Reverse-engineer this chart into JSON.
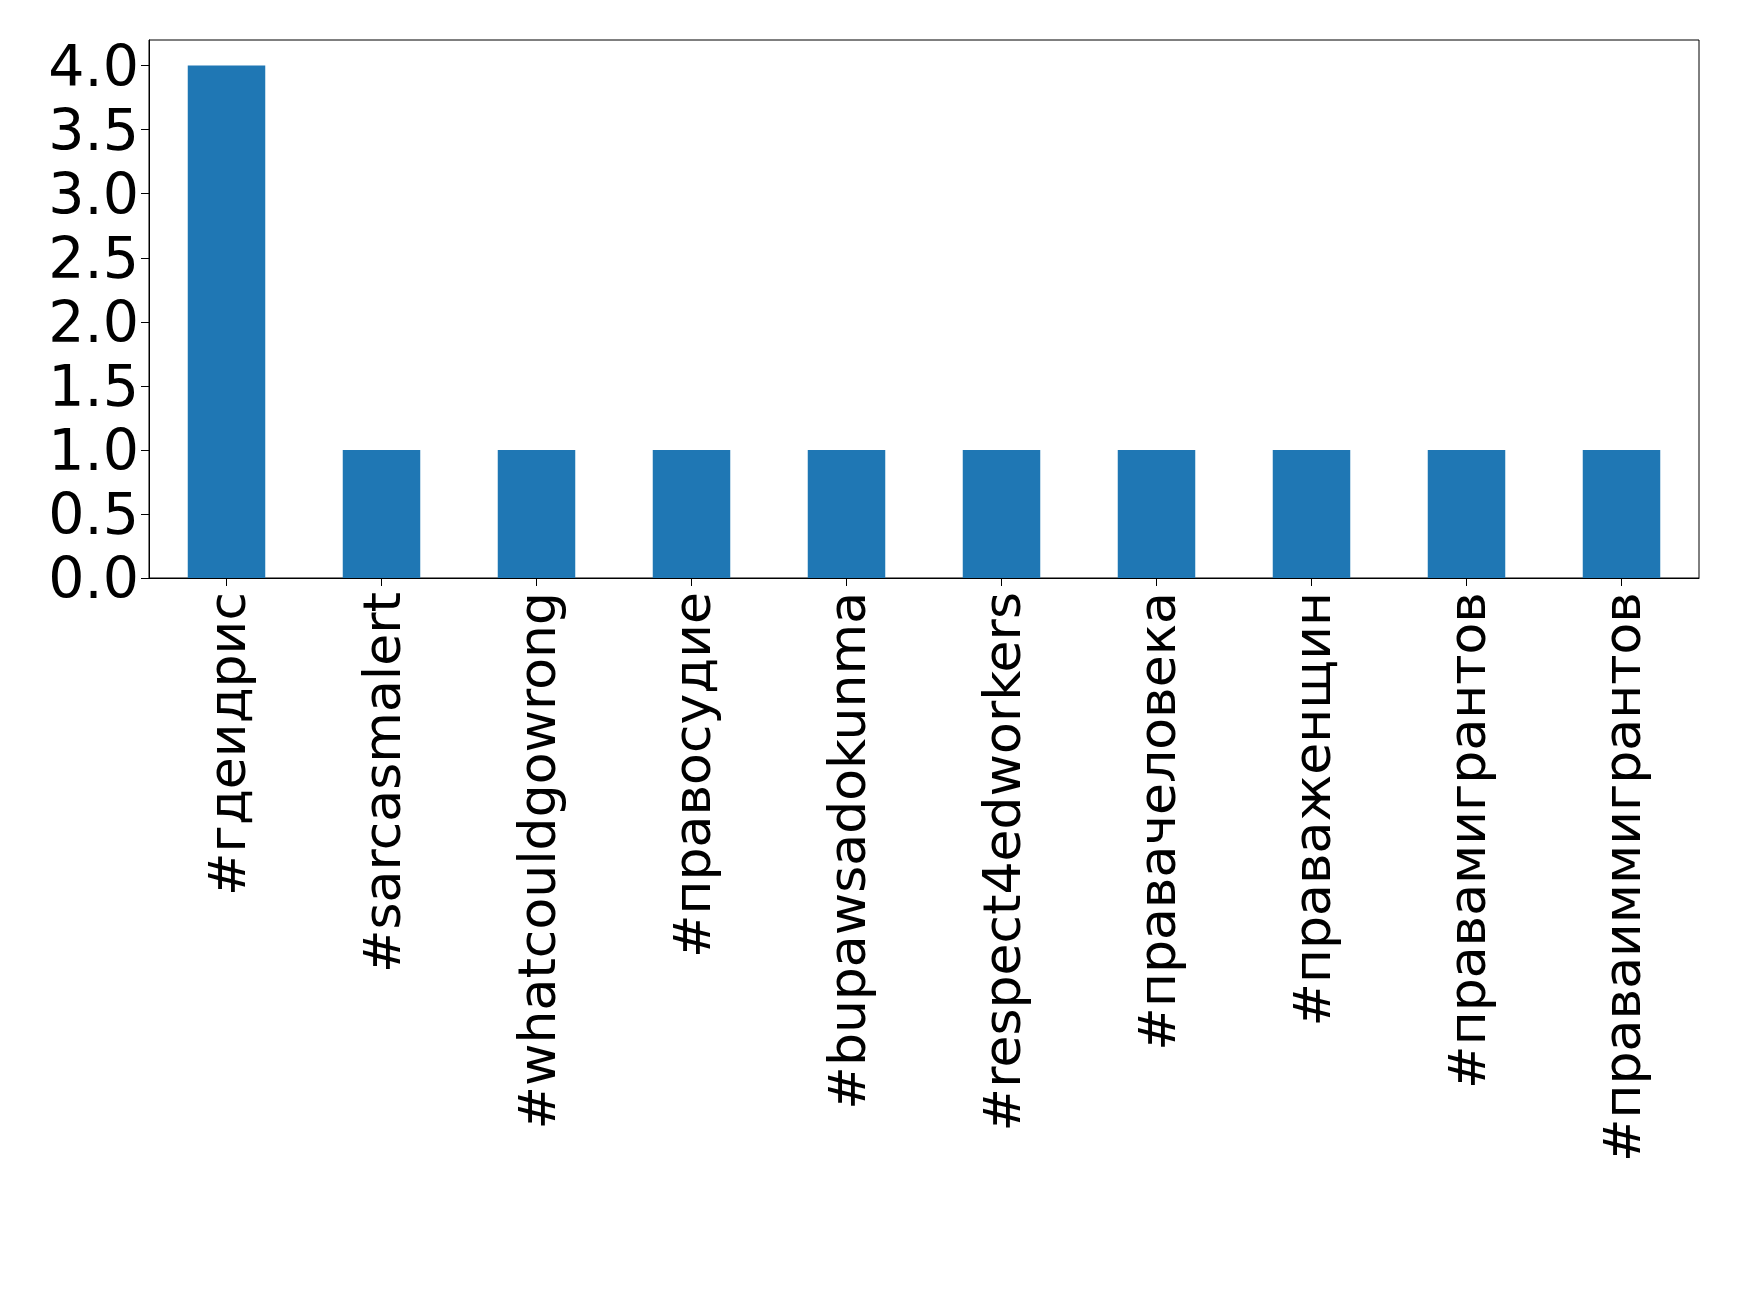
{
  "chart_data": {
    "type": "bar",
    "categories": [
      "#гдеидрис",
      "#sarcasmalert",
      "#whatcouldgowrong",
      "#правосудие",
      "#bupawsadokunma",
      "#respect4edworkers",
      "#правачеловека",
      "#праваженщин",
      "#правамигрантов",
      "#праваиммигрантов"
    ],
    "values": [
      4,
      1,
      1,
      1,
      1,
      1,
      1,
      1,
      1,
      1
    ],
    "color": "#1f77b4",
    "ylim": [
      0,
      4.2
    ],
    "yticks": [
      {
        "value": 0,
        "label": "0.0"
      },
      {
        "value": 0.5,
        "label": "0.5"
      },
      {
        "value": 1,
        "label": "1.0"
      },
      {
        "value": 1.5,
        "label": "1.5"
      },
      {
        "value": 2,
        "label": "2.0"
      },
      {
        "value": 2.5,
        "label": "2.5"
      },
      {
        "value": 3,
        "label": "3.0"
      },
      {
        "value": 3.5,
        "label": "3.5"
      },
      {
        "value": 4,
        "label": "4.0"
      }
    ],
    "grid": false
  }
}
